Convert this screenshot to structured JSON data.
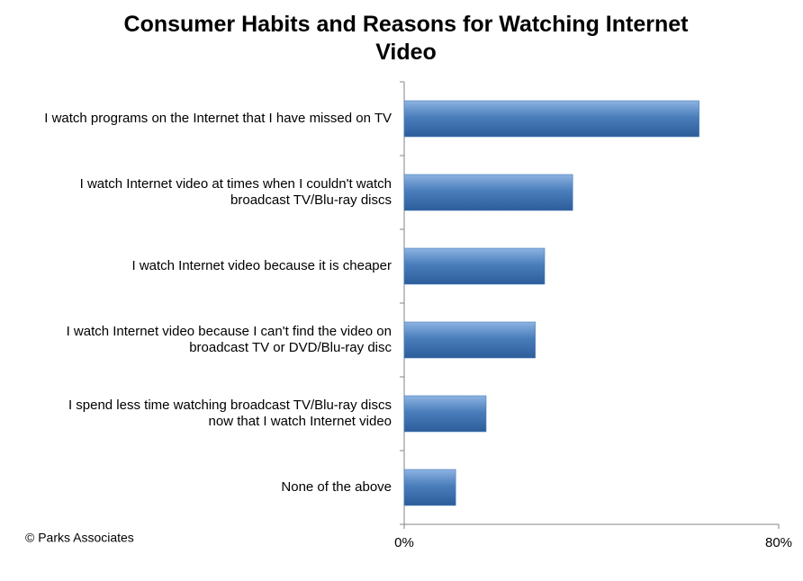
{
  "chart_data": {
    "type": "bar",
    "orientation": "horizontal",
    "title": "Consumer Habits and Reasons for Watching Internet Video",
    "source": "© Parks Associates",
    "categories": [
      [
        "I watch programs on the Internet that I have missed on TV"
      ],
      [
        "I watch Internet video at times when I couldn't watch",
        "broadcast TV/Blu-ray discs"
      ],
      [
        "I watch Internet video because it is cheaper"
      ],
      [
        "I watch Internet video because I can't find the video on",
        "broadcast TV  or DVD/Blu-ray disc"
      ],
      [
        "I spend less time watching broadcast TV/Blu-ray discs",
        "now that I watch Internet video"
      ],
      [
        "None of the above"
      ]
    ],
    "values": [
      63,
      36,
      30,
      28,
      17.5,
      11
    ],
    "color": "#4a7ebb",
    "xlim": [
      0,
      80
    ],
    "xticks": [
      {
        "value": 0,
        "label": "0%"
      },
      {
        "value": 80,
        "label": "80%"
      }
    ],
    "grid": false
  }
}
